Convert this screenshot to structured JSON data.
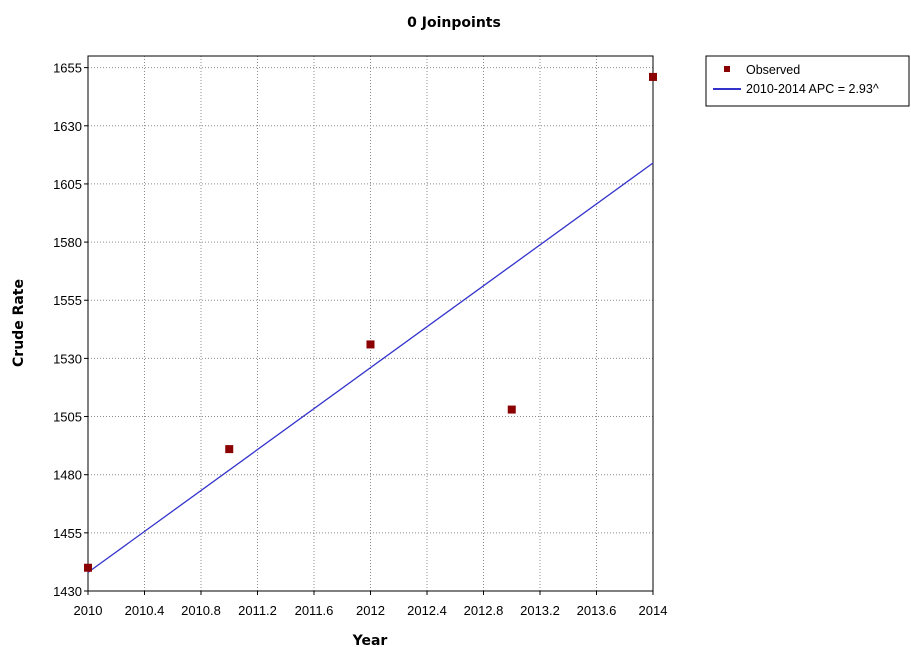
{
  "chart_data": {
    "type": "scatter",
    "title": "0 Joinpoints",
    "xlabel": "Year",
    "ylabel": "Crude Rate",
    "xlim": [
      2010,
      2014
    ],
    "ylim": [
      1430,
      1660
    ],
    "x_ticks": [
      "2010",
      "2010.4",
      "2010.8",
      "2011.2",
      "2011.6",
      "2012",
      "2012.4",
      "2012.8",
      "2013.2",
      "2013.6",
      "2014"
    ],
    "y_ticks": [
      "1430",
      "1455",
      "1480",
      "1505",
      "1530",
      "1555",
      "1580",
      "1605",
      "1630",
      "1655"
    ],
    "grid": true,
    "legend_position": "top-right",
    "series": [
      {
        "name": "Observed",
        "kind": "points",
        "color": "#8b0000",
        "x": [
          2010,
          2011,
          2012,
          2013,
          2014
        ],
        "y": [
          1440,
          1491,
          1536,
          1508,
          1651
        ]
      },
      {
        "name": "2010-2014 APC  = 2.93^",
        "kind": "line",
        "color": "#3333cc",
        "x": [
          2010,
          2014
        ],
        "y": [
          1438,
          1614
        ]
      }
    ]
  }
}
